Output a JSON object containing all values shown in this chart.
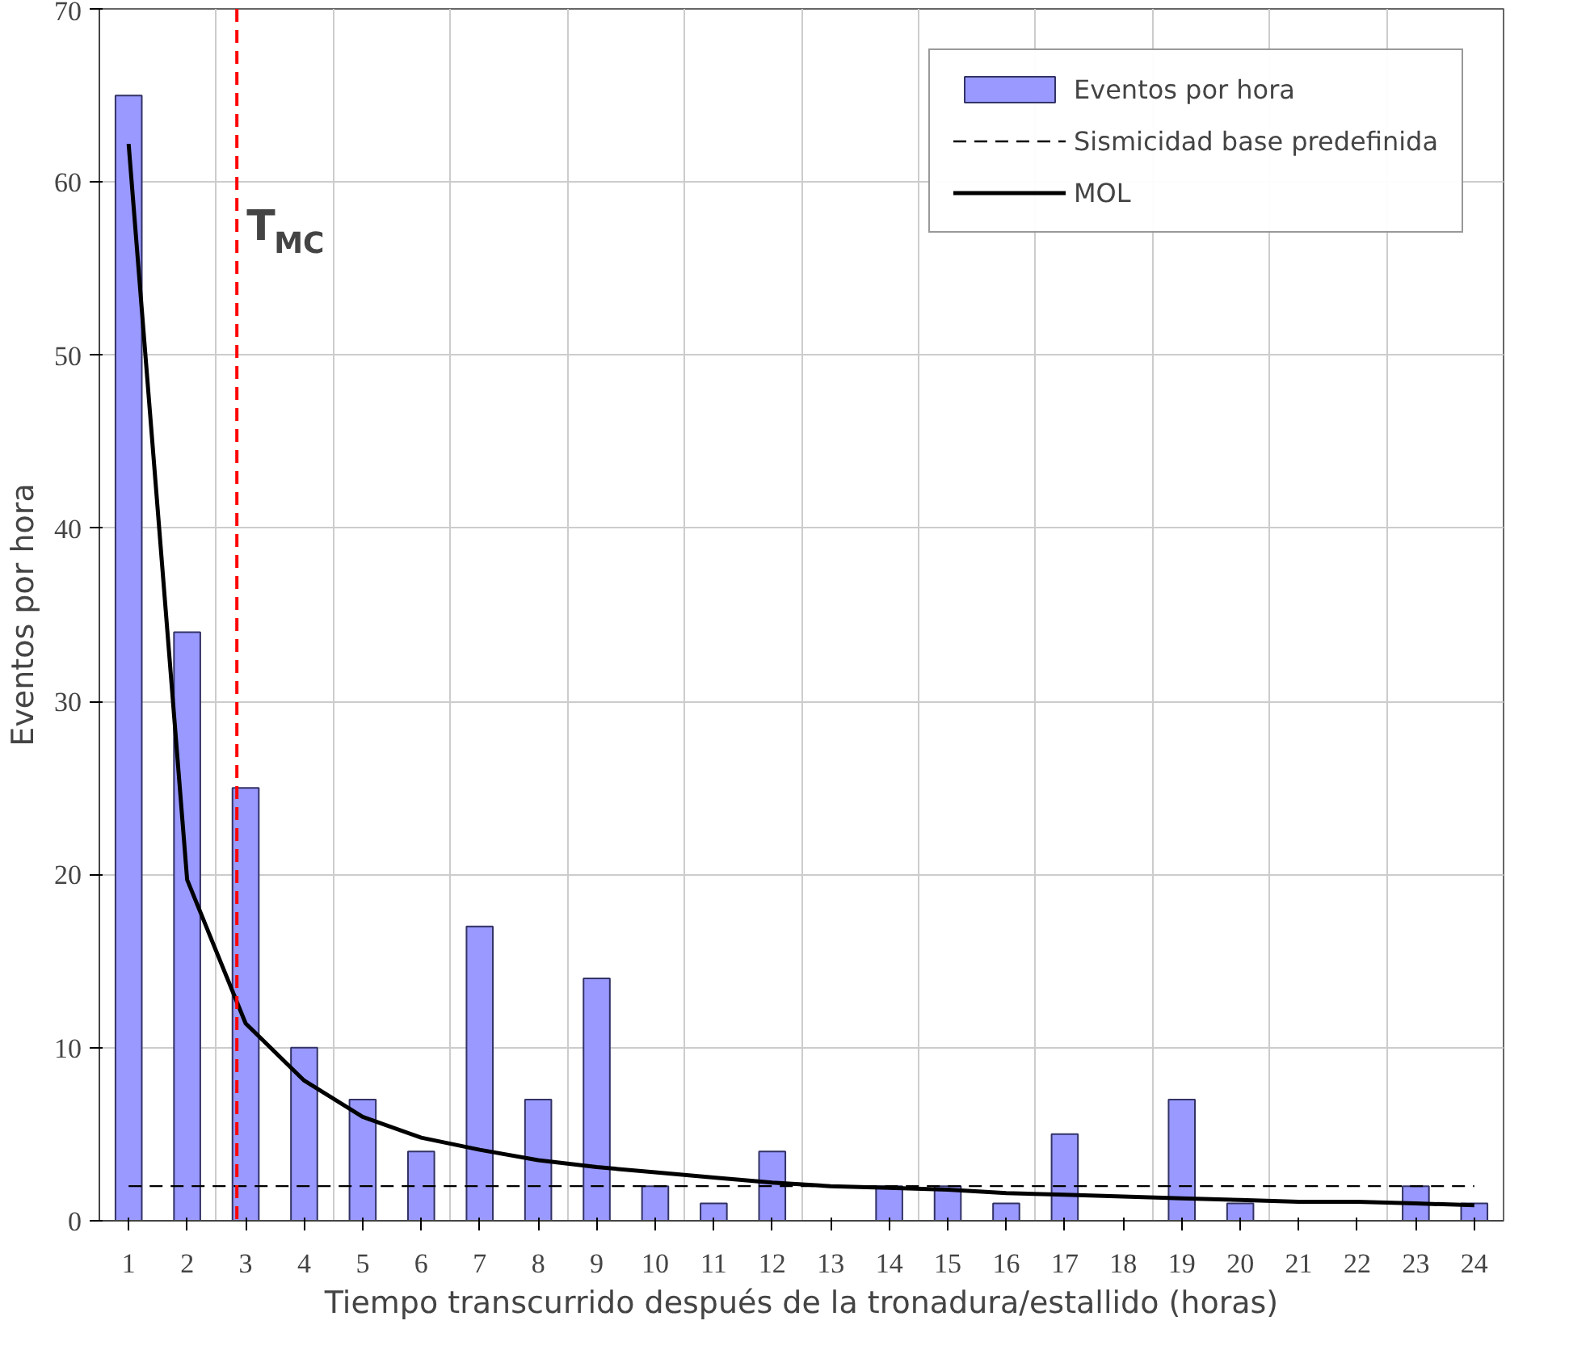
{
  "chart_data": {
    "type": "bar",
    "xlabel": "Tiempo transcurrido después de la tronadura/estallido (horas)",
    "ylabel": "Eventos por hora",
    "x": [
      1,
      2,
      3,
      4,
      5,
      6,
      7,
      8,
      9,
      10,
      11,
      12,
      13,
      14,
      15,
      16,
      17,
      18,
      19,
      20,
      21,
      22,
      23,
      24
    ],
    "xlim": [
      0.5,
      24.5
    ],
    "xticks": [
      1,
      2,
      3,
      4,
      5,
      6,
      7,
      8,
      9,
      10,
      11,
      12,
      13,
      14,
      15,
      16,
      17,
      18,
      19,
      20,
      21,
      22,
      23,
      24
    ],
    "ylim": [
      0,
      70
    ],
    "yticks": [
      0,
      10,
      20,
      30,
      40,
      50,
      60,
      70
    ],
    "grid": true,
    "legend": "top right",
    "series": [
      {
        "name": "Eventos por hora",
        "color": "#9999ff",
        "values": [
          65,
          34,
          25,
          10,
          7,
          4,
          17,
          7,
          14,
          2,
          1,
          4,
          0,
          2,
          2,
          1,
          5,
          0,
          7,
          1,
          0,
          0,
          2,
          1
        ]
      },
      {
        "name": "Sismicidad base predefinida",
        "type": "line",
        "color": "#000000",
        "line_style": "dashed",
        "values": [
          2,
          2,
          2,
          2,
          2,
          2,
          2,
          2,
          2,
          2,
          2,
          2,
          2,
          2,
          2,
          2,
          2,
          2,
          2,
          2,
          2,
          2,
          2,
          2
        ]
      },
      {
        "name": "MOL",
        "type": "line",
        "color": "#000000",
        "line_style": "solid",
        "values": [
          62.2,
          19.7,
          11.4,
          8.1,
          6.0,
          4.8,
          4.1,
          3.5,
          3.1,
          2.8,
          2.5,
          2.2,
          2.0,
          1.9,
          1.8,
          1.6,
          1.5,
          1.4,
          1.3,
          1.2,
          1.1,
          1.1,
          1.0,
          0.9
        ]
      }
    ],
    "ref_lines": [
      {
        "axis": "x",
        "value": 2.85,
        "label": "T$_{MC}$",
        "color": "#ff0000",
        "line_style": "dashed"
      }
    ]
  }
}
